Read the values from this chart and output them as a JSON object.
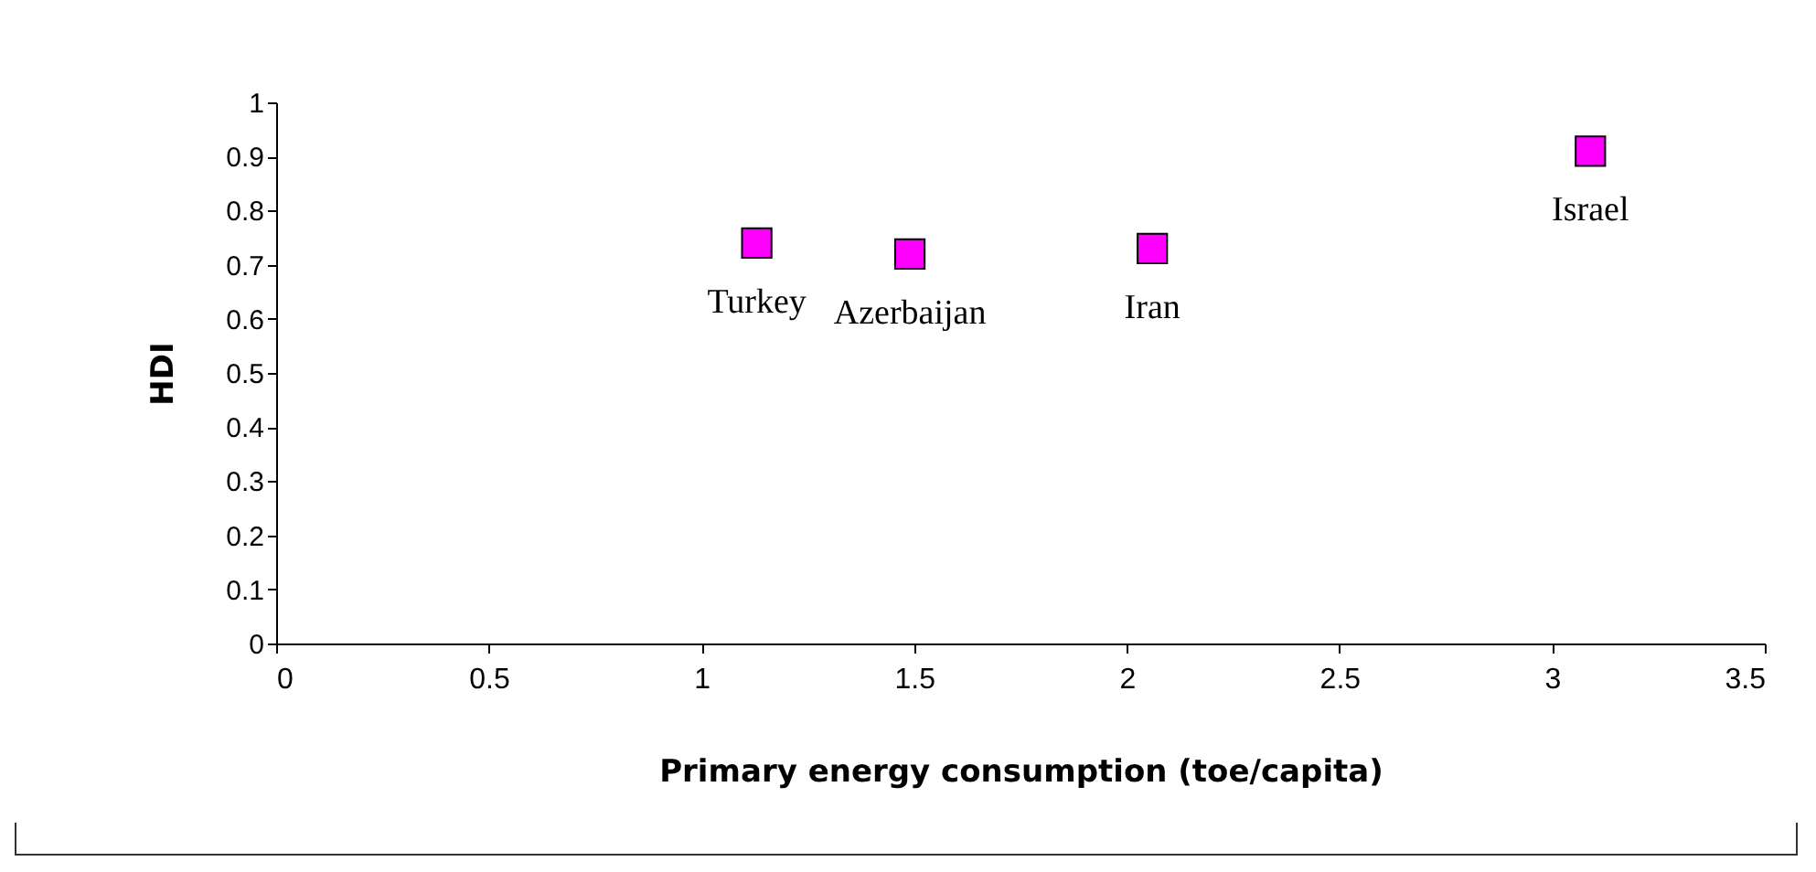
{
  "chart_data": {
    "type": "scatter",
    "xlabel": "Primary energy consumption (toe/capita)",
    "ylabel": "HDI",
    "x": [
      1.13,
      1.49,
      2.06,
      3.09
    ],
    "series": [
      {
        "color": "#ff00ff",
        "values": [
          0.74,
          0.72,
          0.73,
          0.91
        ]
      }
    ],
    "marker": "square",
    "grid": false,
    "legend": false,
    "xlim": [
      0,
      3.5
    ],
    "xticks": [
      0,
      0.5,
      1,
      1.5,
      2,
      2.5,
      3,
      3.5
    ],
    "ylim": [
      0,
      1
    ],
    "yticks": [
      0,
      0.1,
      0.2,
      0.3,
      0.4,
      0.5,
      0.6,
      0.7,
      0.8,
      0.9,
      1
    ],
    "annotations": [
      {
        "text": "Turkey",
        "x": 1.13,
        "y": 0.74
      },
      {
        "text": "Azerbaijan",
        "x": 1.49,
        "y": 0.72
      },
      {
        "text": "Iran",
        "x": 2.06,
        "y": 0.73
      },
      {
        "text": "Israel",
        "x": 3.09,
        "y": 0.91
      }
    ]
  }
}
